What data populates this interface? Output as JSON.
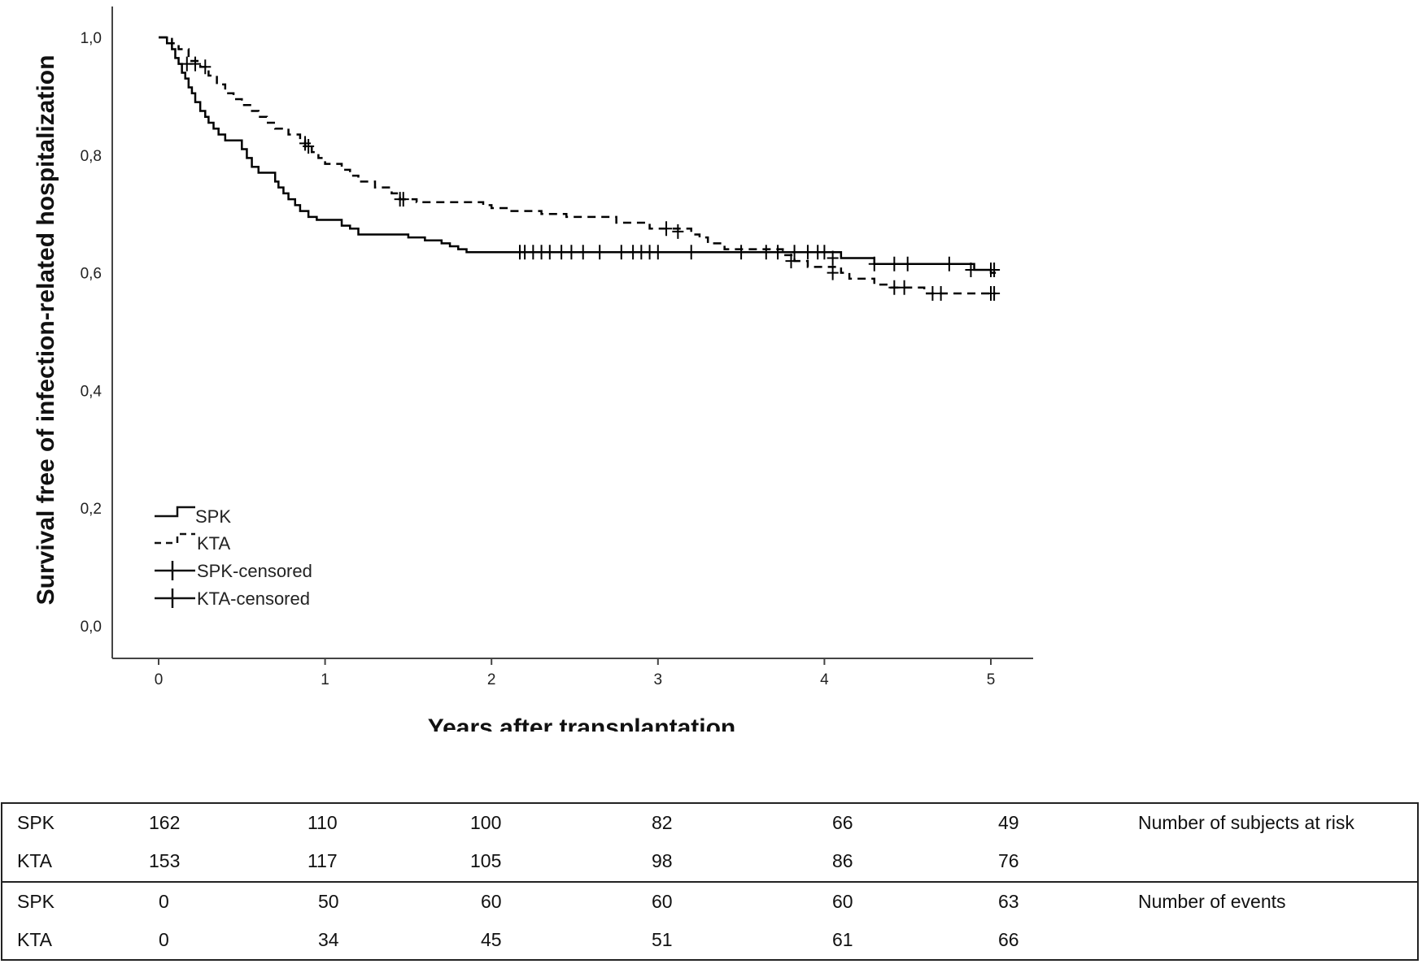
{
  "chart_data": {
    "type": "line",
    "title": "",
    "xlabel": "Years after transplantation",
    "ylabel": "Survival free of infection-related hospitalization",
    "xlim": [
      0,
      5
    ],
    "ylim": [
      0,
      1
    ],
    "x_ticks": [
      "0",
      "1",
      "2",
      "3",
      "4",
      "5"
    ],
    "y_ticks": [
      "0,0",
      "0,2",
      "0,4",
      "0,6",
      "0,8",
      "1,0"
    ],
    "grid": false,
    "legend_placement": "lower-left",
    "legend": [
      "SPK",
      "KTA",
      "SPK-censored",
      "KTA-censored"
    ],
    "series": [
      {
        "name": "SPK",
        "style": "solid",
        "color": "#000000",
        "x": [
          0,
          0.05,
          0.08,
          0.1,
          0.12,
          0.14,
          0.16,
          0.18,
          0.2,
          0.22,
          0.25,
          0.28,
          0.3,
          0.33,
          0.36,
          0.4,
          0.5,
          0.53,
          0.56,
          0.6,
          0.7,
          0.72,
          0.75,
          0.78,
          0.82,
          0.85,
          0.9,
          0.95,
          1.1,
          1.15,
          1.2,
          1.5,
          1.6,
          1.7,
          1.75,
          1.8,
          1.85,
          4.1,
          4.3,
          4.9,
          5.0,
          5.03
        ],
        "y": [
          1.0,
          0.99,
          0.98,
          0.965,
          0.955,
          0.94,
          0.93,
          0.915,
          0.905,
          0.89,
          0.875,
          0.865,
          0.855,
          0.845,
          0.835,
          0.825,
          0.81,
          0.795,
          0.78,
          0.77,
          0.755,
          0.745,
          0.735,
          0.725,
          0.715,
          0.705,
          0.695,
          0.69,
          0.68,
          0.675,
          0.665,
          0.66,
          0.655,
          0.65,
          0.645,
          0.64,
          0.635,
          0.625,
          0.615,
          0.605,
          0.6,
          0.6
        ],
        "censored_x": [
          2.17,
          2.2,
          2.25,
          2.3,
          2.35,
          2.42,
          2.48,
          2.55,
          2.65,
          2.78,
          2.85,
          2.9,
          2.95,
          3.0,
          3.2,
          3.5,
          3.65,
          3.72,
          3.82,
          3.9,
          3.96,
          4.0,
          4.05,
          4.3,
          4.42,
          4.5,
          4.75,
          4.88,
          5.0,
          5.02
        ],
        "censored_y": [
          0.635,
          0.635,
          0.635,
          0.635,
          0.635,
          0.635,
          0.635,
          0.635,
          0.635,
          0.635,
          0.635,
          0.635,
          0.635,
          0.635,
          0.635,
          0.635,
          0.635,
          0.635,
          0.635,
          0.635,
          0.635,
          0.635,
          0.625,
          0.615,
          0.615,
          0.615,
          0.615,
          0.605,
          0.605,
          0.605
        ]
      },
      {
        "name": "KTA",
        "style": "dashed",
        "color": "#000000",
        "x": [
          0,
          0.08,
          0.12,
          0.18,
          0.25,
          0.3,
          0.35,
          0.4,
          0.45,
          0.5,
          0.55,
          0.6,
          0.65,
          0.7,
          0.78,
          0.85,
          0.88,
          0.92,
          0.96,
          1.0,
          1.1,
          1.15,
          1.2,
          1.3,
          1.4,
          1.45,
          1.55,
          1.95,
          2.0,
          2.1,
          2.3,
          2.45,
          2.75,
          2.95,
          3.2,
          3.25,
          3.3,
          3.4,
          3.75,
          3.82,
          3.9,
          4.1,
          4.15,
          4.3,
          4.4,
          4.6,
          4.95,
          5.03
        ],
        "y": [
          1.0,
          0.99,
          0.98,
          0.96,
          0.95,
          0.935,
          0.92,
          0.905,
          0.895,
          0.885,
          0.875,
          0.865,
          0.855,
          0.845,
          0.835,
          0.825,
          0.815,
          0.805,
          0.795,
          0.785,
          0.775,
          0.765,
          0.755,
          0.745,
          0.735,
          0.725,
          0.72,
          0.715,
          0.71,
          0.705,
          0.7,
          0.695,
          0.685,
          0.675,
          0.665,
          0.66,
          0.65,
          0.64,
          0.63,
          0.62,
          0.61,
          0.6,
          0.59,
          0.58,
          0.575,
          0.565,
          0.565,
          0.565
        ],
        "censored_x": [
          0.17,
          0.22,
          0.28,
          0.88,
          0.9,
          1.45,
          1.47,
          3.05,
          3.12,
          3.8,
          4.05,
          4.42,
          4.48,
          4.65,
          4.7,
          5.0,
          5.02
        ],
        "censored_y": [
          0.955,
          0.955,
          0.95,
          0.82,
          0.815,
          0.725,
          0.725,
          0.675,
          0.67,
          0.62,
          0.6,
          0.575,
          0.575,
          0.565,
          0.565,
          0.565,
          0.565
        ]
      }
    ]
  },
  "risk_table": {
    "subjects_at_risk_label": "Number of subjects at risk",
    "events_label": "Number of events",
    "rows": [
      {
        "group": "SPK",
        "values": [
          "162",
          "110",
          "100",
          "82",
          "66",
          "49"
        ]
      },
      {
        "group": "KTA",
        "values": [
          "153",
          "117",
          "105",
          "98",
          "86",
          "76"
        ]
      },
      {
        "group": "SPK",
        "values": [
          "0",
          "50",
          "60",
          "60",
          "60",
          "63"
        ]
      },
      {
        "group": "KTA",
        "values": [
          "0",
          "34",
          "45",
          "51",
          "61",
          "66"
        ]
      }
    ]
  }
}
